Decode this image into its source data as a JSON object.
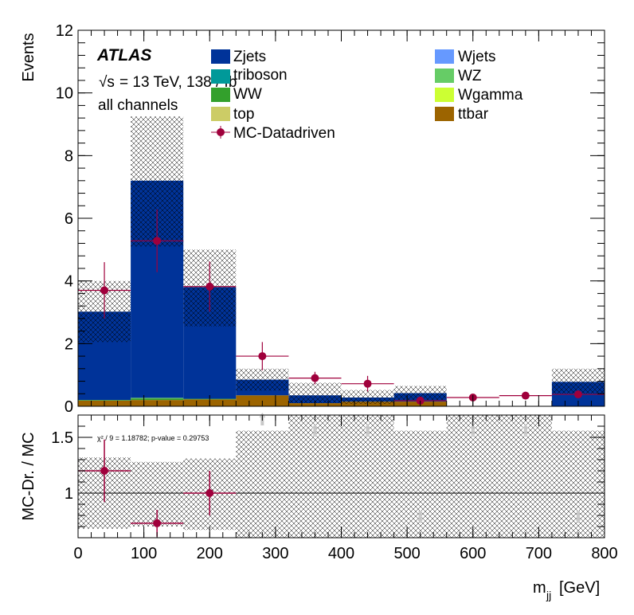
{
  "chart_data": [
    {
      "type": "bar",
      "subtype": "stacked-histogram",
      "title": "",
      "xlabel_main": "m",
      "xlabel_sub": "jj",
      "xlabel_unit": "[GeV]",
      "ylabel": "Events",
      "xlim": [
        0,
        800
      ],
      "ylim": [
        0,
        12
      ],
      "x_ticks": [
        0,
        100,
        200,
        300,
        400,
        500,
        600,
        700,
        800
      ],
      "y_ticks": [
        0,
        2,
        4,
        6,
        8,
        10,
        12
      ],
      "bin_edges": [
        0,
        80,
        160,
        240,
        320,
        400,
        480,
        560,
        640,
        720,
        800
      ],
      "series": [
        {
          "name": "ttbar",
          "color": "#9c6400",
          "values": [
            0.18,
            0.2,
            0.22,
            0.35,
            0.1,
            0.15,
            0.15,
            0.0,
            0.0,
            0.0
          ]
        },
        {
          "name": "top",
          "color": "#cccc66",
          "values": [
            0.0,
            0.0,
            0.0,
            0.0,
            0.0,
            0.0,
            0.0,
            0.0,
            0.0,
            0.0
          ]
        },
        {
          "name": "Wgamma",
          "color": "#ccff33",
          "values": [
            0.0,
            0.0,
            0.0,
            0.0,
            0.0,
            0.0,
            0.0,
            0.0,
            0.0,
            0.0
          ]
        },
        {
          "name": "WW",
          "color": "#33a02c",
          "values": [
            0.02,
            0.05,
            0.02,
            0.0,
            0.0,
            0.0,
            0.0,
            0.0,
            0.0,
            0.0
          ]
        },
        {
          "name": "WZ",
          "color": "#66cc66",
          "values": [
            0.0,
            0.02,
            0.0,
            0.0,
            0.0,
            0.0,
            0.0,
            0.0,
            0.0,
            0.0
          ]
        },
        {
          "name": "triboson",
          "color": "#009999",
          "values": [
            0.0,
            0.0,
            0.0,
            0.0,
            0.0,
            0.0,
            0.0,
            0.0,
            0.0,
            0.0
          ]
        },
        {
          "name": "Wjets",
          "color": "#6699ff",
          "values": [
            0.0,
            0.0,
            0.0,
            0.0,
            0.0,
            0.0,
            0.0,
            0.0,
            0.0,
            0.0
          ]
        },
        {
          "name": "Zjets",
          "color": "#003399",
          "values": [
            2.82,
            6.93,
            3.56,
            0.5,
            0.25,
            0.13,
            0.27,
            0.0,
            0.0,
            0.78
          ]
        }
      ],
      "mc_total": [
        3.02,
        7.2,
        3.8,
        0.85,
        0.35,
        0.28,
        0.42,
        0.0,
        0.0,
        0.78
      ],
      "mc_uncertainty_band": {
        "low": [
          2.05,
          5.1,
          2.55,
          0.5,
          0.1,
          0.08,
          0.2,
          0.0,
          0.0,
          0.4
        ],
        "high": [
          4.0,
          9.25,
          5.0,
          1.2,
          0.75,
          0.52,
          0.65,
          0.0,
          0.0,
          1.2
        ]
      },
      "data": {
        "name": "MC-Datadriven",
        "color": "#a0003c",
        "x": [
          40,
          120,
          200,
          280,
          360,
          440,
          520,
          600,
          680,
          760
        ],
        "y": [
          3.7,
          5.28,
          3.82,
          1.6,
          0.9,
          0.72,
          0.18,
          0.28,
          0.34,
          0.38
        ],
        "err_up": [
          0.9,
          1.0,
          0.8,
          0.45,
          0.2,
          0.25,
          0.05,
          0.05,
          0.08,
          0.08
        ],
        "err_dn": [
          0.9,
          1.0,
          0.8,
          0.45,
          0.2,
          0.25,
          0.05,
          0.05,
          0.08,
          0.08
        ]
      },
      "legend": {
        "col1": [
          "Zjets",
          "triboson",
          "WW",
          "top"
        ],
        "col2": [
          "Wjets",
          "WZ",
          "Wgamma",
          "ttbar"
        ],
        "data_entry": "MC-Datadriven"
      },
      "annotations": {
        "experiment": "ATLAS",
        "sqrt_symbol": "√s",
        "energy_lumi": "= 13 TeV, 138 / fb",
        "region": "all channels"
      }
    },
    {
      "type": "scatter",
      "subtype": "ratio-panel",
      "ylabel": "MC-Dr. / MC",
      "xlim": [
        0,
        800
      ],
      "ylim": [
        0.6,
        1.7
      ],
      "y_ticks": [
        1,
        1.5
      ],
      "y_tick_labels": [
        "1",
        "1.5"
      ],
      "x_ticks": [
        0,
        100,
        200,
        300,
        400,
        500,
        600,
        700,
        800
      ],
      "reference_line": 1,
      "band": {
        "low": [
          0.68,
          0.7,
          0.67,
          0.6,
          0.6,
          0.6,
          0.6,
          0.6,
          0.6,
          0.6
        ],
        "high": [
          1.32,
          1.28,
          1.31,
          1.56,
          1.76,
          1.76,
          1.56,
          1.76,
          1.76,
          1.56
        ]
      },
      "points": {
        "x": [
          40,
          120,
          200
        ],
        "y": [
          1.2,
          0.73,
          1.0
        ],
        "err": [
          0.28,
          0.12,
          0.2
        ],
        "color": "#a0003c"
      },
      "out_of_range_markers": {
        "x": [
          280,
          360,
          440,
          520,
          600,
          680,
          760
        ],
        "y": [
          1.65,
          1.55,
          1.55,
          0.8,
          1.55,
          1.55,
          0.8
        ],
        "color": "#c8c8c8"
      },
      "stat_text": "χ² / 9 = 1.18782; p-value = 0.29753"
    }
  ]
}
